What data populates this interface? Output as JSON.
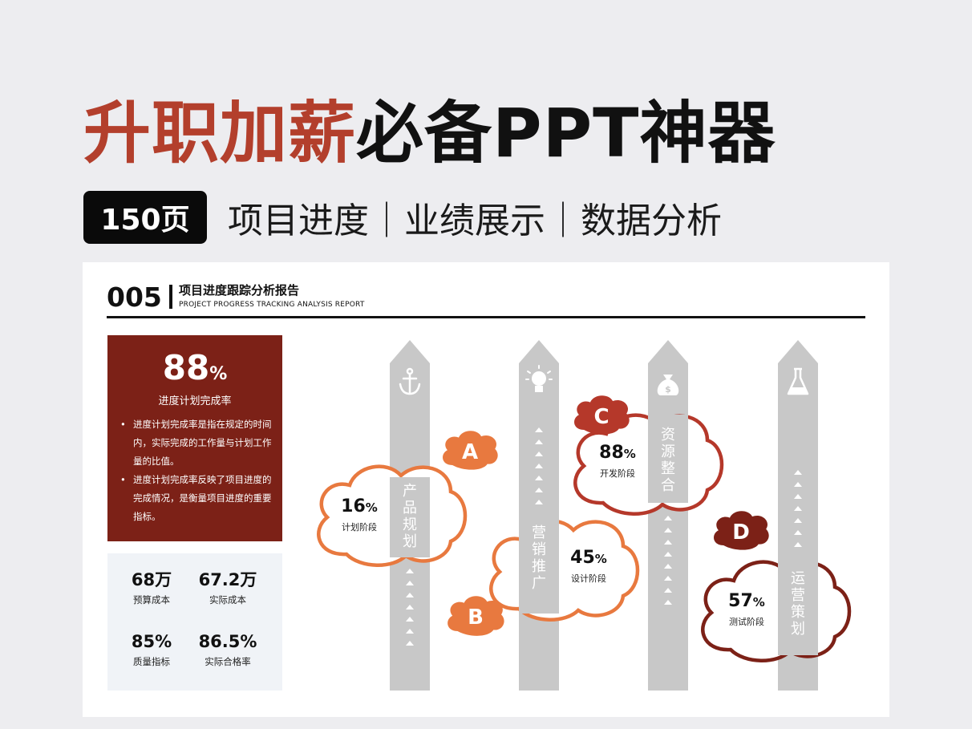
{
  "header": {
    "title_red": "升职加薪",
    "title_black": "必备PPT神器",
    "pages_badge": "150页",
    "subtitle": "项目进度｜业绩展示｜数据分析"
  },
  "slide": {
    "number": "005",
    "title": "项目进度跟踪分析报告",
    "subtitle": "PROJECT PROGRESS TRACKING ANALYSIS REPORT"
  },
  "summary": {
    "rate_value": "88",
    "rate_unit": "%",
    "rate_label": "进度计划完成率",
    "bullets": [
      "进度计划完成率是指在规定的时间内，实际完成的工作量与计划工作量的比值。",
      "进度计划完成率反映了项目进度的完成情况，是衡量项目进度的重要指标。"
    ]
  },
  "stats": [
    {
      "value": "68万",
      "label": "预算成本"
    },
    {
      "value": "67.2万",
      "label": "实际成本"
    },
    {
      "value": "85%",
      "label": "质量指标"
    },
    {
      "value": "86.5%",
      "label": "实际合格率"
    }
  ],
  "stages": [
    {
      "letter": "A",
      "name": "产品规划",
      "value": "16",
      "unit": "%",
      "phase": "计划阶段",
      "progress": 0.16,
      "color": "#e8793f",
      "icon": "anchor-icon"
    },
    {
      "letter": "B",
      "name": "营销推广",
      "value": "45",
      "unit": "%",
      "phase": "设计阶段",
      "progress": 0.45,
      "color": "#e8793f",
      "icon": "lightbulb-icon"
    },
    {
      "letter": "C",
      "name": "资源整合",
      "value": "88",
      "unit": "%",
      "phase": "开发阶段",
      "progress": 0.88,
      "color": "#b5382a",
      "icon": "money-bag-icon"
    },
    {
      "letter": "D",
      "name": "运营策划",
      "value": "57",
      "unit": "%",
      "phase": "测试阶段",
      "progress": 0.57,
      "color": "#7c2117",
      "icon": "flask-icon"
    }
  ]
}
